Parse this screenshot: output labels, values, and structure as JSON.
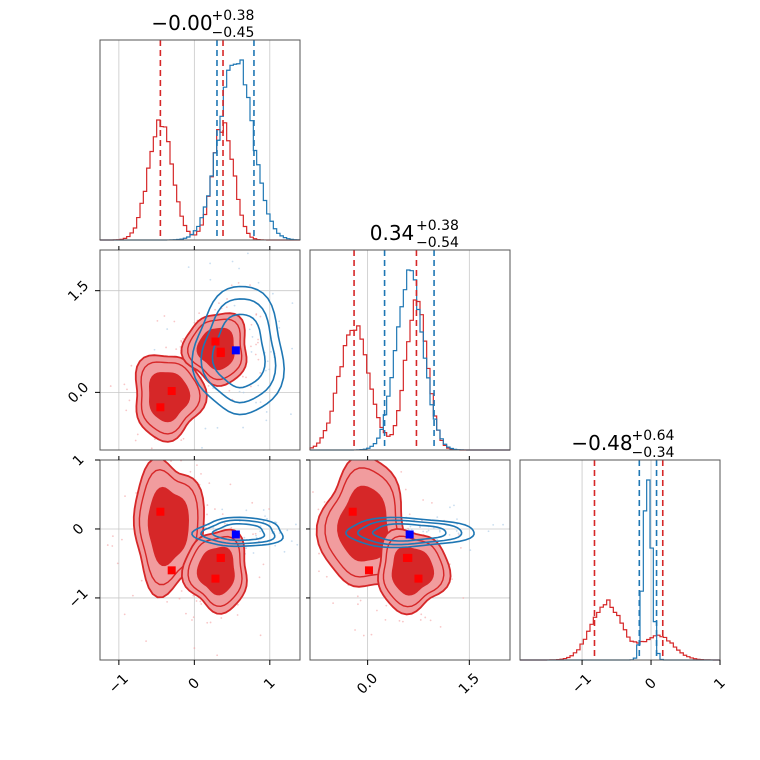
{
  "colors": {
    "red": "#d62728",
    "red_fill_outer": "#f19c9e",
    "red_fill_inner": "#d62728",
    "blue": "#1f77b4",
    "truth_red": "#ff0000",
    "truth_blue": "#0000ff",
    "grid": "#c8c8c8"
  },
  "chart_data": {
    "type": "corner",
    "parameters": [
      {
        "title": "−0.00",
        "sup": "+0.38",
        "sub": "−0.45",
        "range": [
          -1.25,
          1.4
        ]
      },
      {
        "title": "0.34",
        "sup": "+0.38",
        "sub": "−0.54",
        "range": [
          -0.85,
          2.1
        ]
      },
      {
        "title": "−0.48",
        "sup": "+0.64",
        "sub": "−0.34",
        "range": [
          -1.9,
          1.0
        ]
      }
    ],
    "ticks": [
      {
        "values": [
          -1,
          0,
          1
        ],
        "labels": [
          "−1",
          "0",
          "1"
        ]
      },
      {
        "values": [
          0.0,
          1.5
        ],
        "labels": [
          "0.0",
          "1.5"
        ]
      },
      {
        "values": [
          -1,
          0,
          1
        ],
        "labels": [
          "−1",
          "0",
          "1"
        ]
      }
    ],
    "diag_lines": [
      {
        "red": [
          -0.45,
          0.38
        ],
        "blue": [
          0.3,
          0.79
        ]
      },
      {
        "red": [
          -0.2,
          0.72
        ],
        "blue": [
          0.25,
          0.98
        ]
      },
      {
        "red": [
          -0.82,
          0.17
        ],
        "blue": [
          -0.17,
          0.08
        ]
      }
    ],
    "histograms": [
      {
        "red": {
          "mu": [
            -0.45,
            0.38
          ],
          "sigma": [
            0.16,
            0.14
          ],
          "weight": [
            0.5,
            0.5
          ],
          "peak": 0.6
        },
        "blue": {
          "mu": [
            0.55
          ],
          "sigma": [
            0.22
          ],
          "weight": [
            1.0
          ],
          "peak": 0.9
        }
      },
      {
        "red": {
          "mu": [
            -0.2,
            0.72
          ],
          "sigma": [
            0.22,
            0.16
          ],
          "weight": [
            0.45,
            0.55
          ],
          "peak": 0.75
        },
        "blue": {
          "mu": [
            0.62
          ],
          "sigma": [
            0.2
          ],
          "weight": [
            1.0
          ],
          "peak": 0.9
        }
      },
      {
        "red": {
          "mu": [
            -0.65,
            0.1
          ],
          "sigma": [
            0.22,
            0.22
          ],
          "weight": [
            0.7,
            0.3
          ],
          "peak": 0.3
        },
        "blue": {
          "mu": [
            -0.05
          ],
          "sigma": [
            0.06
          ],
          "weight": [
            1.0
          ],
          "peak": 0.9
        }
      }
    ],
    "red_truths": [
      {
        "x": -0.45,
        "y": -0.22,
        "z": 0.25
      },
      {
        "x": -0.3,
        "y": 0.02,
        "z": -0.6
      },
      {
        "x": 0.28,
        "y": 0.75,
        "z": -0.72
      },
      {
        "x": 0.35,
        "y": 0.58,
        "z": -0.42
      },
      {
        "x": 0.35,
        "y": 0.6,
        "z": -0.42
      }
    ],
    "blue_truth": {
      "x": 0.55,
      "y": 0.62,
      "z": -0.08
    },
    "red_clusters": [
      {
        "x": -0.35,
        "y": -0.05,
        "z": 0.05,
        "sx": 0.22,
        "sy": 0.3,
        "sz": 0.45
      },
      {
        "x": 0.3,
        "y": 0.65,
        "z": -0.6,
        "sx": 0.2,
        "sy": 0.25,
        "sz": 0.28
      }
    ],
    "blue_cluster": {
      "x": 0.6,
      "y": 0.6,
      "z": -0.05,
      "sx": 0.28,
      "sy": 0.45,
      "sz": 0.1
    }
  }
}
